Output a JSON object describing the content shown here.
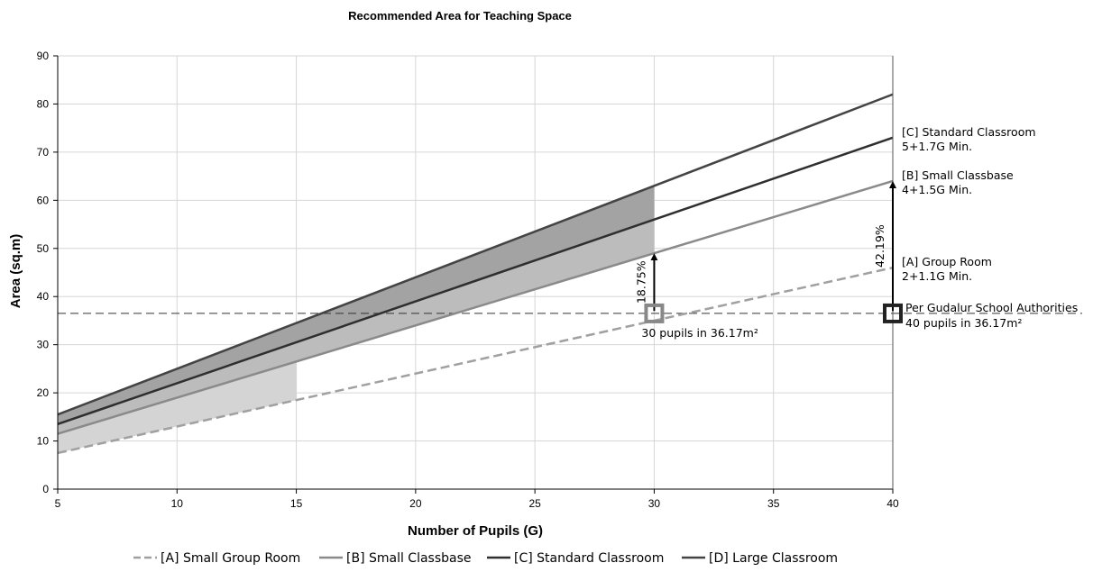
{
  "chart_data": {
    "type": "line",
    "title": "Recommended Area for Teaching Space",
    "xlabel": "Number of Pupils (G)",
    "ylabel": "Area (sq.m)",
    "xlim": [
      5,
      40
    ],
    "ylim": [
      0,
      90
    ],
    "xticks": [
      5,
      10,
      15,
      20,
      25,
      30,
      35,
      40
    ],
    "yticks": [
      0,
      10,
      20,
      30,
      40,
      50,
      60,
      70,
      80,
      90
    ],
    "grid": true,
    "legend_position": "bottom",
    "x": [
      5,
      40
    ],
    "series": [
      {
        "name": "[A] Small Group Room",
        "values": [
          7.5,
          46
        ],
        "color": "#a0a0a0",
        "dash": true
      },
      {
        "name": "[B] Small Classbase",
        "values": [
          11.5,
          64
        ],
        "color": "#8a8a8a",
        "dash": false
      },
      {
        "name": "[C] Standard Classroom",
        "values": [
          13.5,
          73
        ],
        "color": "#2f2f2f",
        "dash": false
      },
      {
        "name": "[D] Large Classroom",
        "values": [
          15.5,
          82
        ],
        "color": "#444444",
        "dash": false
      }
    ],
    "shaded_regions": [
      {
        "x": [
          5,
          15
        ],
        "lower": "[A] Small Group Room",
        "upper": "[B] Small Classbase",
        "color": "#d4d4d4"
      },
      {
        "x": [
          5,
          30
        ],
        "lower": "[B] Small Classbase",
        "upper": "[C] Standard Classroom",
        "color": "#bcbcbc"
      },
      {
        "x": [
          5,
          30
        ],
        "lower": "[C] Standard Classroom",
        "upper": "[D] Large Classroom",
        "color": "#a3a3a3"
      }
    ],
    "reference_line": {
      "y": 36.5
    },
    "markers": [
      {
        "x": 30,
        "y": 36.5,
        "label": "30 pupils in 36.17m²"
      },
      {
        "x": 40,
        "y": 36.5,
        "label_lines": [
          "Per Gudalur School Authorities",
          "40 pupils in 36.17m²"
        ]
      }
    ],
    "arrows": [
      {
        "x": 30,
        "y_from": 37,
        "y_to": 49,
        "label": "18.75%"
      },
      {
        "x": 40,
        "y_from": 37,
        "y_to": 64,
        "label": "42.19%"
      }
    ],
    "annotations": [
      {
        "x": 40,
        "y": 73,
        "lines": [
          "[C] Standard Classroom",
          "5+1.7G Min."
        ]
      },
      {
        "x": 40,
        "y": 64,
        "lines": [
          "[B] Small Classbase",
          "4+1.5G Min."
        ]
      },
      {
        "x": 40,
        "y": 46,
        "lines": [
          "[A] Group Room",
          "2+1.1G Min."
        ]
      }
    ]
  }
}
